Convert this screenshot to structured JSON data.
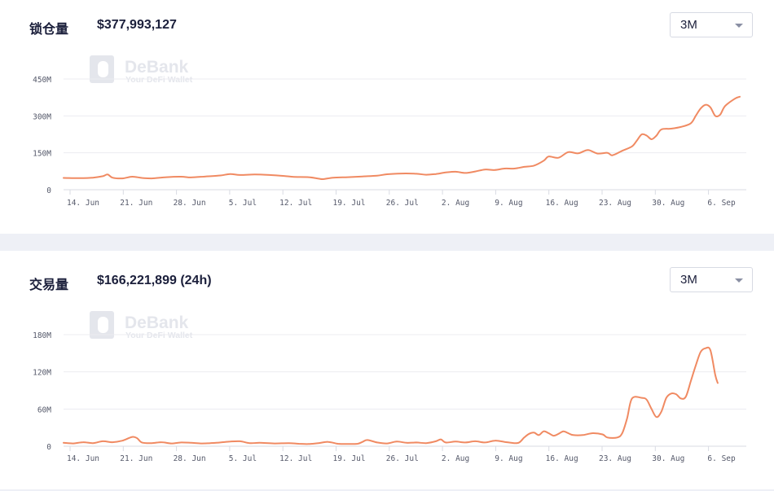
{
  "watermark": {
    "title": "DeBank",
    "subtitle": "Your DeFi Wallet"
  },
  "colors": {
    "line": "#f08a62",
    "grid": "#ececf1",
    "axis": "#d9dbe3",
    "separator": "#eef0f6"
  },
  "charts": [
    {
      "label": "锁仓量",
      "value": "$377,993,127",
      "range_selected": "3M"
    },
    {
      "label": "交易量",
      "value": "$166,221,899 (24h)",
      "range_selected": "3M"
    }
  ],
  "chart_data": [
    {
      "type": "line",
      "title": "锁仓量",
      "x_tick_labels": [
        "14. Jun",
        "21. Jun",
        "28. Jun",
        "5. Jul",
        "12. Jul",
        "19. Jul",
        "26. Jul",
        "2. Aug",
        "9. Aug",
        "16. Aug",
        "23. Aug",
        "30. Aug",
        "6. Sep"
      ],
      "y_tick_labels": [
        "0",
        "150M",
        "300M",
        "450M"
      ],
      "ylim": [
        0,
        450000000
      ],
      "grid": true,
      "series": [
        {
          "values": [
            [
              0,
              48000000
            ],
            [
              3,
              47000000
            ],
            [
              6,
              49000000
            ],
            [
              8,
              55000000
            ],
            [
              9,
              62000000
            ],
            [
              10,
              49000000
            ],
            [
              12,
              46000000
            ],
            [
              14,
              53000000
            ],
            [
              16,
              48000000
            ],
            [
              18,
              46000000
            ],
            [
              21,
              51000000
            ],
            [
              24,
              53000000
            ],
            [
              26,
              50000000
            ],
            [
              29,
              54000000
            ],
            [
              32,
              58000000
            ],
            [
              34,
              64000000
            ],
            [
              36,
              60000000
            ],
            [
              39,
              62000000
            ],
            [
              42,
              60000000
            ],
            [
              45,
              56000000
            ],
            [
              47,
              52000000
            ],
            [
              50,
              51000000
            ],
            [
              52,
              45000000
            ],
            [
              53,
              43000000
            ],
            [
              55,
              49000000
            ],
            [
              58,
              51000000
            ],
            [
              61,
              54000000
            ],
            [
              64,
              57000000
            ],
            [
              66,
              63000000
            ],
            [
              69,
              66000000
            ],
            [
              72,
              65000000
            ],
            [
              74,
              61000000
            ],
            [
              76,
              64000000
            ],
            [
              78,
              70000000
            ],
            [
              80,
              73000000
            ],
            [
              82,
              68000000
            ],
            [
              84,
              74000000
            ],
            [
              86,
              82000000
            ],
            [
              88,
              80000000
            ],
            [
              90,
              86000000
            ],
            [
              92,
              86000000
            ],
            [
              94,
              93000000
            ],
            [
              96,
              98000000
            ],
            [
              98,
              118000000
            ],
            [
              99,
              135000000
            ],
            [
              101,
              130000000
            ],
            [
              103,
              153000000
            ],
            [
              105,
              148000000
            ],
            [
              107,
              161000000
            ],
            [
              109,
              147000000
            ],
            [
              111,
              150000000
            ],
            [
              112,
              140000000
            ],
            [
              114,
              158000000
            ],
            [
              116,
              176000000
            ],
            [
              117,
              200000000
            ],
            [
              118,
              225000000
            ],
            [
              119,
              220000000
            ],
            [
              120,
              205000000
            ],
            [
              121,
              220000000
            ],
            [
              122,
              245000000
            ],
            [
              124,
              248000000
            ],
            [
              126,
              255000000
            ],
            [
              128,
              270000000
            ],
            [
              129,
              300000000
            ],
            [
              130,
              330000000
            ],
            [
              131,
              345000000
            ],
            [
              132,
              335000000
            ],
            [
              133,
              300000000
            ],
            [
              134,
              305000000
            ],
            [
              135,
              340000000
            ],
            [
              137,
              370000000
            ],
            [
              138,
              378000000
            ]
          ]
        }
      ]
    },
    {
      "type": "line",
      "title": "交易量",
      "x_tick_labels": [
        "14. Jun",
        "21. Jun",
        "28. Jun",
        "5. Jul",
        "12. Jul",
        "19. Jul",
        "26. Jul",
        "2. Aug",
        "9. Aug",
        "16. Aug",
        "23. Aug",
        "30. Aug",
        "6. Sep"
      ],
      "y_tick_labels": [
        "0",
        "60M",
        "120M",
        "180M"
      ],
      "ylim": [
        0,
        180000000
      ],
      "grid": true,
      "series": [
        {
          "values": [
            [
              0,
              5500000
            ],
            [
              2,
              4500000
            ],
            [
              4,
              6500000
            ],
            [
              6,
              5000000
            ],
            [
              8,
              8000000
            ],
            [
              10,
              6500000
            ],
            [
              12,
              9000000
            ],
            [
              14,
              15000000
            ],
            [
              15,
              13000000
            ],
            [
              16,
              6000000
            ],
            [
              18,
              5000000
            ],
            [
              20,
              6500000
            ],
            [
              22,
              4500000
            ],
            [
              24,
              6000000
            ],
            [
              26,
              5500000
            ],
            [
              28,
              4500000
            ],
            [
              30,
              5000000
            ],
            [
              32,
              6000000
            ],
            [
              34,
              7500000
            ],
            [
              36,
              8000000
            ],
            [
              38,
              5000000
            ],
            [
              40,
              5500000
            ],
            [
              43,
              4500000
            ],
            [
              46,
              5000000
            ],
            [
              48,
              4000000
            ],
            [
              50,
              3500000
            ],
            [
              52,
              5000000
            ],
            [
              54,
              7000000
            ],
            [
              56,
              4000000
            ],
            [
              58,
              3500000
            ],
            [
              60,
              4000000
            ],
            [
              61,
              7000000
            ],
            [
              62,
              10000000
            ],
            [
              64,
              6000000
            ],
            [
              66,
              4500000
            ],
            [
              68,
              7500000
            ],
            [
              70,
              5500000
            ],
            [
              72,
              6000000
            ],
            [
              74,
              5000000
            ],
            [
              76,
              8000000
            ],
            [
              77,
              11000000
            ],
            [
              78,
              6000000
            ],
            [
              80,
              7500000
            ],
            [
              82,
              6000000
            ],
            [
              84,
              8000000
            ],
            [
              86,
              6000000
            ],
            [
              88,
              9000000
            ],
            [
              90,
              7000000
            ],
            [
              92,
              5000000
            ],
            [
              93,
              6000000
            ],
            [
              94,
              14000000
            ],
            [
              95,
              20000000
            ],
            [
              96,
              22000000
            ],
            [
              97,
              18000000
            ],
            [
              98,
              24000000
            ],
            [
              99,
              21000000
            ],
            [
              100,
              17000000
            ],
            [
              101,
              20000000
            ],
            [
              102,
              24000000
            ],
            [
              103,
              21000000
            ],
            [
              104,
              18000000
            ],
            [
              106,
              18000000
            ],
            [
              108,
              21000000
            ],
            [
              110,
              19000000
            ],
            [
              111,
              14000000
            ],
            [
              113,
              14000000
            ],
            [
              114,
              21000000
            ],
            [
              115,
              45000000
            ],
            [
              116,
              77000000
            ],
            [
              118,
              78000000
            ],
            [
              119,
              75000000
            ],
            [
              120,
              60000000
            ],
            [
              121,
              47000000
            ],
            [
              122,
              56000000
            ],
            [
              123,
              78000000
            ],
            [
              124,
              85000000
            ],
            [
              125,
              84000000
            ],
            [
              126,
              77000000
            ],
            [
              127,
              80000000
            ],
            [
              128,
              105000000
            ],
            [
              129,
              130000000
            ],
            [
              130,
              152000000
            ],
            [
              131,
              158000000
            ],
            [
              132,
              155000000
            ],
            [
              133,
              115000000
            ],
            [
              133.5,
              102000000
            ]
          ]
        }
      ]
    }
  ]
}
